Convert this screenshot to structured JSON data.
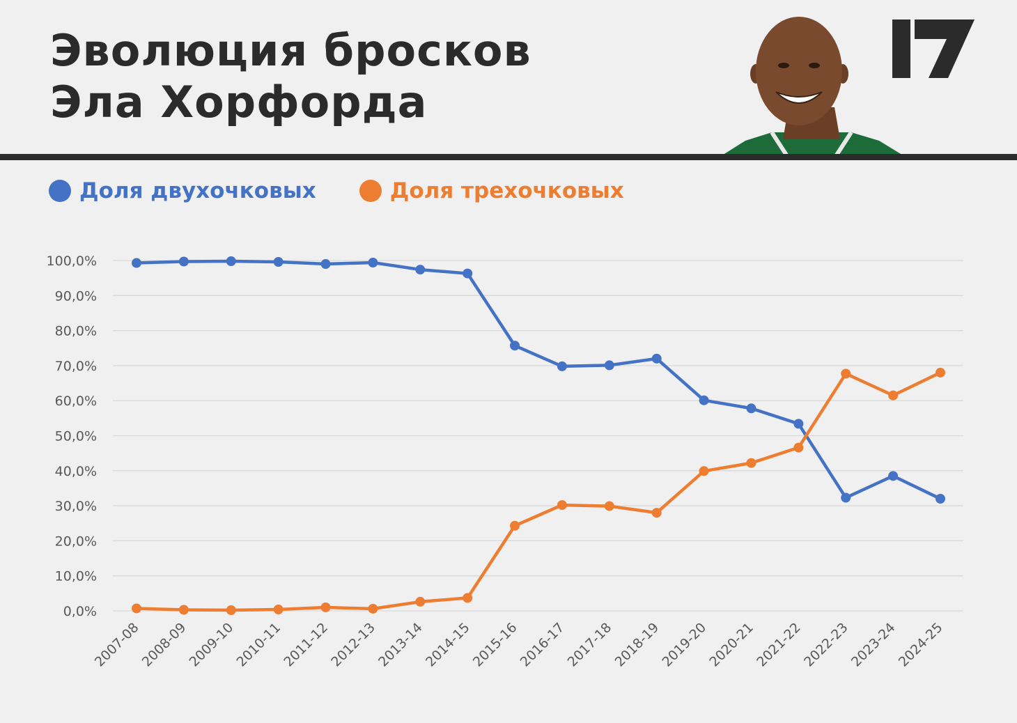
{
  "header": {
    "title": "Эволюция бросков\nЭла Хорфорда"
  },
  "colors": {
    "background": "#f0f0f0",
    "text_dark": "#2b2b2b",
    "two_point": "#4472c4",
    "three_point": "#ed7d31",
    "grid": "#d9d9d9",
    "axis_text": "#595959"
  },
  "icons": {
    "portrait": "player-portrait",
    "logo": "brand-logo"
  },
  "chart_data": {
    "type": "line",
    "title": "",
    "xlabel": "",
    "ylabel": "",
    "ylim": [
      0,
      100
    ],
    "y_ticks": [
      "0,0%",
      "10,0%",
      "20,0%",
      "30,0%",
      "40,0%",
      "50,0%",
      "60,0%",
      "70,0%",
      "80,0%",
      "90,0%",
      "100,0%"
    ],
    "grid": true,
    "legend_position": "top-left",
    "categories": [
      "2007-08",
      "2008-09",
      "2009-10",
      "2010-11",
      "2011-12",
      "2012-13",
      "2013-14",
      "2014-15",
      "2015-16",
      "2016-17",
      "2017-18",
      "2018-19",
      "2019-20",
      "2020-21",
      "2021-22",
      "2022-23",
      "2023-24",
      "2024-25"
    ],
    "series": [
      {
        "name": "Доля двухочковых",
        "color": "#4472c4",
        "values": [
          99.3,
          99.7,
          99.8,
          99.6,
          99.0,
          99.4,
          97.4,
          96.3,
          75.7,
          69.8,
          70.1,
          72.0,
          60.1,
          57.8,
          53.4,
          32.3,
          38.5,
          32.0
        ]
      },
      {
        "name": "Доля трехочковых",
        "color": "#ed7d31",
        "values": [
          0.7,
          0.3,
          0.2,
          0.4,
          1.0,
          0.6,
          2.6,
          3.7,
          24.3,
          30.2,
          29.9,
          28.0,
          39.9,
          42.2,
          46.6,
          67.7,
          61.5,
          68.0
        ]
      }
    ]
  }
}
